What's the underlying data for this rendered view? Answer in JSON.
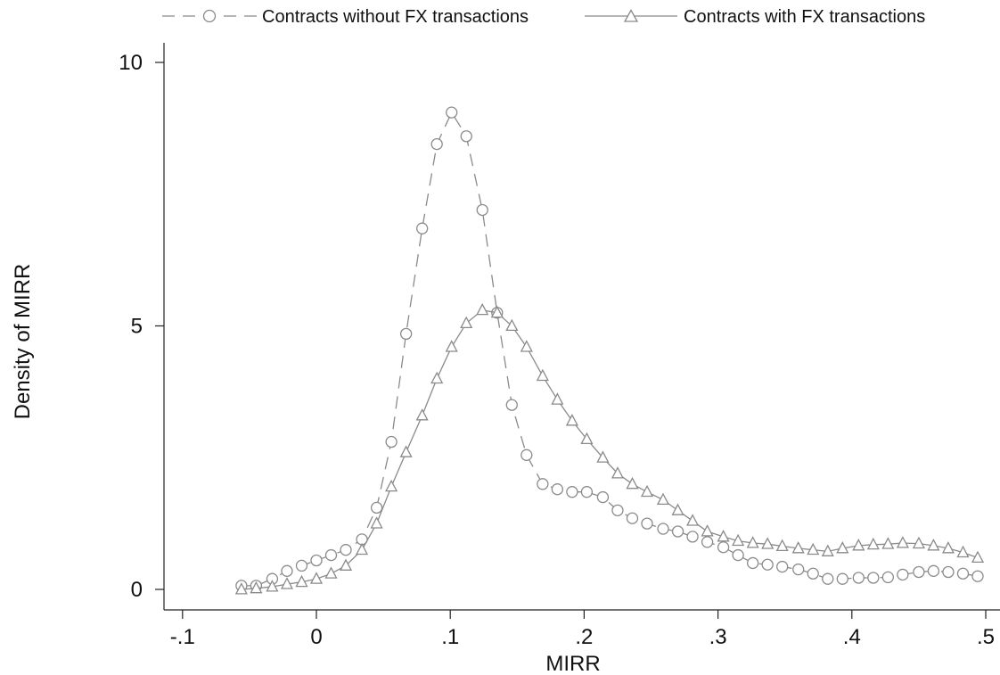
{
  "chart_data": {
    "type": "line",
    "title": "",
    "xlabel": "MIRR",
    "ylabel": "Density of MIRR",
    "xlim": [
      -0.1,
      0.5
    ],
    "ylim": [
      0,
      10
    ],
    "x_ticks": [
      -0.1,
      0,
      0.1,
      0.2,
      0.3,
      0.4,
      0.5
    ],
    "x_tick_labels": [
      "-.1",
      "0",
      ".1",
      ".2",
      ".3",
      ".4",
      ".5"
    ],
    "y_ticks": [
      0,
      5,
      10
    ],
    "y_tick_labels": [
      "0",
      "5",
      "10"
    ],
    "grid": false,
    "legend_position": "top",
    "series": [
      {
        "name": "Contracts without FX transactions",
        "line_style": "dashed",
        "marker": "circle",
        "color": "#8a8a8a",
        "x": [
          -0.056,
          -0.045,
          -0.033,
          -0.022,
          -0.011,
          0.0,
          0.011,
          0.022,
          0.034,
          0.045,
          0.056,
          0.067,
          0.079,
          0.09,
          0.101,
          0.112,
          0.124,
          0.135,
          0.146,
          0.157,
          0.169,
          0.18,
          0.191,
          0.202,
          0.214,
          0.225,
          0.236,
          0.247,
          0.259,
          0.27,
          0.281,
          0.292,
          0.304,
          0.315,
          0.326,
          0.337,
          0.348,
          0.36,
          0.371,
          0.382,
          0.393,
          0.405,
          0.416,
          0.427,
          0.438,
          0.45,
          0.461,
          0.472,
          0.483,
          0.494
        ],
        "y": [
          0.07,
          0.07,
          0.2,
          0.35,
          0.45,
          0.55,
          0.65,
          0.75,
          0.95,
          1.55,
          2.8,
          4.85,
          6.85,
          8.45,
          9.05,
          8.6,
          7.2,
          5.25,
          3.5,
          2.55,
          2.0,
          1.9,
          1.85,
          1.85,
          1.75,
          1.5,
          1.35,
          1.25,
          1.15,
          1.1,
          1.0,
          0.9,
          0.8,
          0.65,
          0.5,
          0.47,
          0.43,
          0.38,
          0.3,
          0.2,
          0.2,
          0.22,
          0.22,
          0.23,
          0.28,
          0.33,
          0.35,
          0.33,
          0.3,
          0.25
        ]
      },
      {
        "name": "Contracts with FX transactions",
        "line_style": "solid",
        "marker": "triangle",
        "color": "#8a8a8a",
        "x": [
          -0.056,
          -0.045,
          -0.033,
          -0.022,
          -0.011,
          0.0,
          0.011,
          0.022,
          0.034,
          0.045,
          0.056,
          0.067,
          0.079,
          0.09,
          0.101,
          0.112,
          0.124,
          0.135,
          0.146,
          0.157,
          0.169,
          0.18,
          0.191,
          0.202,
          0.214,
          0.225,
          0.236,
          0.247,
          0.259,
          0.27,
          0.281,
          0.292,
          0.304,
          0.315,
          0.326,
          0.337,
          0.348,
          0.36,
          0.371,
          0.382,
          0.393,
          0.405,
          0.416,
          0.427,
          0.438,
          0.45,
          0.461,
          0.472,
          0.483,
          0.494
        ],
        "y": [
          0.0,
          0.02,
          0.05,
          0.1,
          0.14,
          0.2,
          0.3,
          0.45,
          0.75,
          1.25,
          1.95,
          2.6,
          3.3,
          4.0,
          4.6,
          5.05,
          5.3,
          5.25,
          5.0,
          4.6,
          4.05,
          3.6,
          3.2,
          2.85,
          2.5,
          2.2,
          2.0,
          1.85,
          1.7,
          1.5,
          1.3,
          1.1,
          1.0,
          0.92,
          0.88,
          0.86,
          0.82,
          0.78,
          0.75,
          0.72,
          0.78,
          0.83,
          0.85,
          0.86,
          0.88,
          0.87,
          0.83,
          0.78,
          0.7,
          0.6
        ]
      }
    ]
  }
}
